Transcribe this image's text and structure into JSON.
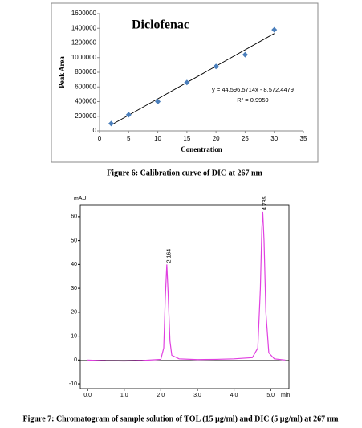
{
  "chart_data": [
    {
      "type": "scatter",
      "title": "Diclofenac",
      "xlabel": "Conentration",
      "ylabel": "Peak Area",
      "x": [
        2,
        5,
        10,
        15,
        20,
        25,
        30
      ],
      "values": [
        100000,
        220000,
        400000,
        660000,
        880000,
        1040000,
        1380000
      ],
      "color": "#4a7ebb",
      "xlim": [
        0,
        35
      ],
      "xticks": [
        0,
        5,
        10,
        15,
        20,
        25,
        30,
        35
      ],
      "ylim": [
        0,
        1600000
      ],
      "yticks": [
        0,
        200000,
        400000,
        600000,
        800000,
        1000000,
        1200000,
        1400000,
        1600000
      ],
      "trendline": {
        "slope": 44596.5714,
        "intercept": -8572.4479,
        "label": "y = 44,596.5714x - 8,572.4479",
        "r2_label": "R² = 0.9959"
      },
      "caption": "Figure 6: Calibration curve of DIC at 267 nm"
    },
    {
      "type": "line",
      "xlabel": "min",
      "ylabel": "mAU",
      "color": "#e040e0",
      "x": [
        0,
        0.5,
        1,
        1.5,
        2.0,
        2.08,
        2.12,
        2.164,
        2.2,
        2.25,
        2.3,
        2.5,
        3,
        3.5,
        4,
        4.5,
        4.65,
        4.72,
        4.76,
        4.785,
        4.82,
        4.87,
        4.95,
        5.1,
        5.4
      ],
      "values": [
        0,
        -0.3,
        -0.4,
        -0.2,
        0.3,
        5,
        25,
        40,
        28,
        8,
        2,
        0.5,
        0.2,
        0.3,
        0.5,
        1,
        5,
        30,
        55,
        62,
        50,
        20,
        3,
        0.5,
        0
      ],
      "xlim": [
        -0.2,
        5.5
      ],
      "xticks": [
        {
          "value": 0,
          "label": "0.0"
        },
        {
          "value": 1,
          "label": "1.0"
        },
        {
          "value": 2,
          "label": "2.0"
        },
        {
          "value": 3,
          "label": "3.0"
        },
        {
          "value": 4,
          "label": "4.0"
        },
        {
          "value": 5,
          "label": "5.0"
        }
      ],
      "ylim": [
        -12,
        65
      ],
      "yticks": [
        -10,
        0,
        10,
        20,
        30,
        40,
        50,
        60
      ],
      "peaks": [
        {
          "x": 2.164,
          "y": 40,
          "label": "2.164"
        },
        {
          "x": 4.785,
          "y": 62,
          "label": "4.785"
        }
      ],
      "caption": "Figure 7: Chromatogram of sample solution of TOL (15 µg/ml) and DIC (5 µg/ml) at 267 nm"
    }
  ]
}
